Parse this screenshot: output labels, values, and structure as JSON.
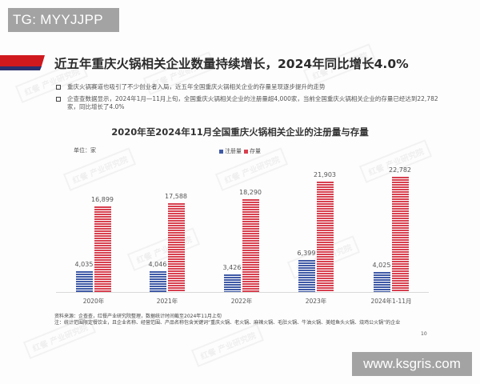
{
  "overlay": {
    "top_left_badge": "TG: MYYJJPP",
    "bottom_right_badge": "www.ksgris.com"
  },
  "header": {
    "title": "近五年重庆火锅相关企业数量持续增长，2024年同比增长4.0%"
  },
  "bullets": [
    "重庆火锅赛道也吸引了不少创业者入局，近五年全国重庆火锅相关企业的存量呈现逐步提升的走势",
    "企查查数据显示，2024年1月—11月上旬，全国重庆火锅相关企业的注册量超4,000家，当前全国重庆火锅相关企业的存量已经达到22,782家，同比增长了4.0%"
  ],
  "chart": {
    "title": "2020年至2024年11月全国重庆火锅相关企业的注册量与存量",
    "unit": "单位：家",
    "legend": [
      {
        "label": "注册量",
        "color": "#3f5aa6"
      },
      {
        "label": "存量",
        "color": "#d7404f"
      }
    ]
  },
  "chart_data": {
    "type": "bar",
    "title": "2020年至2024年11月全国重庆火锅相关企业的注册量与存量",
    "xlabel": "",
    "ylabel": "单位：家",
    "categories": [
      "2020年",
      "2021年",
      "2022年",
      "2023年",
      "2024年1-11月"
    ],
    "series": [
      {
        "name": "注册量",
        "color": "#3f5aa6",
        "values": [
          4035,
          4046,
          3426,
          6399,
          4025
        ],
        "labels": [
          "4,035",
          "4,046",
          "3,426",
          "6,399",
          "4,025"
        ]
      },
      {
        "name": "存量",
        "color": "#d7404f",
        "values": [
          16899,
          17588,
          18290,
          21903,
          22782
        ],
        "labels": [
          "16,899",
          "17,588",
          "18,290",
          "21,903",
          "22,782"
        ]
      }
    ],
    "ylim": [
      0,
      24000
    ],
    "grid": false,
    "legend_position": "top"
  },
  "footer": {
    "source": "资料来源：企查查，红餐产业研究院整理，数据统计时间截至2024年11月上旬",
    "note": "注：统计范围限定餐饮业，且企业名称、经营范围、产品名称包含关键词“重庆火锅、老火锅、麻辣火锅、毛肚火锅、牛油火锅、美蛙鱼头火锅、烧鸡公火锅”的企业",
    "page_number": "10"
  },
  "watermark": "红餐 产业研究院"
}
